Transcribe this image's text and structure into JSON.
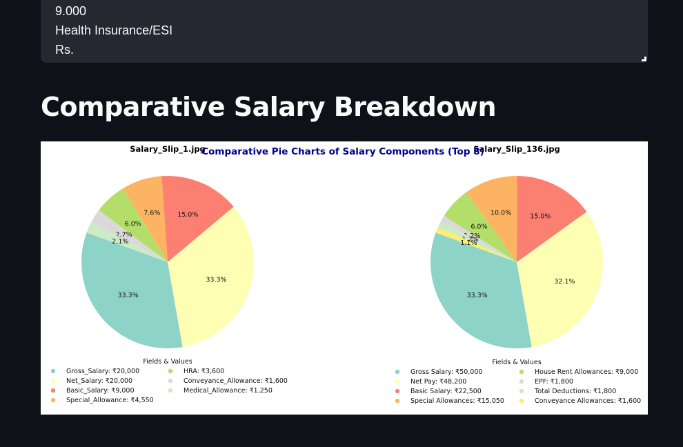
{
  "textbox": {
    "lines": [
      "9.000",
      "Health Insurance/ESI",
      "Rs."
    ]
  },
  "section": {
    "heading": "Comparative Salary Breakdown"
  },
  "figure": {
    "title": "Comparative Pie Charts of Salary Components (Top 8)",
    "legend_title": "Fields & Values"
  },
  "chart_data": [
    {
      "type": "pie",
      "title": "Salary_Slip_1.jpg",
      "start_angle_deg": 160,
      "labels": [
        "Gross_Salary: ₹20,000",
        "Net_Salary: ₹20,000",
        "Basic_Salary: ₹9,000",
        "Special_Allowance: ₹4,550",
        "HRA: ₹3,600",
        "Conveyance_Allowance: ₹1,600",
        "Medical_Allowance: ₹1,250"
      ],
      "values": [
        20000,
        20000,
        9000,
        4550,
        3600,
        1600,
        1250
      ],
      "percent_labels": [
        "33.3%",
        "33.3%",
        "15.0%",
        "7.6%",
        "6.0%",
        "2.7%",
        "2.1%"
      ],
      "colors": [
        "#8dd3c7",
        "#ffffb3",
        "#fb8072",
        "#fdb462",
        "#b3de69",
        "#d9d9d9",
        "#ccebc5"
      ],
      "legend_title": "Fields & Values"
    },
    {
      "type": "pie",
      "title": "Salary_Slip_136.jpg",
      "start_angle_deg": 160,
      "labels": [
        "Gross Salary: ₹50,000",
        "Net Pay: ₹48,200",
        "Basic Salary: ₹22,500",
        "Special Allowances: ₹15,050",
        "House Rent Allowances: ₹9,000",
        "EPF: ₹1,800",
        "Total Deductions: ₹1,800",
        "Conveyance Allowances: ₹1,600"
      ],
      "values": [
        50000,
        48200,
        22500,
        15050,
        9000,
        1800,
        1800,
        1600
      ],
      "percent_labels": [
        "33.3%",
        "32.1%",
        "15.0%",
        "10.0%",
        "6.0%",
        "1.2%",
        "1.2%",
        "1.1%"
      ],
      "colors": [
        "#8dd3c7",
        "#ffffb3",
        "#fb8072",
        "#fdb462",
        "#b3de69",
        "#d9d9d9",
        "#ccebc5",
        "#ffed6f"
      ],
      "legend_title": "Fields & Values"
    }
  ]
}
